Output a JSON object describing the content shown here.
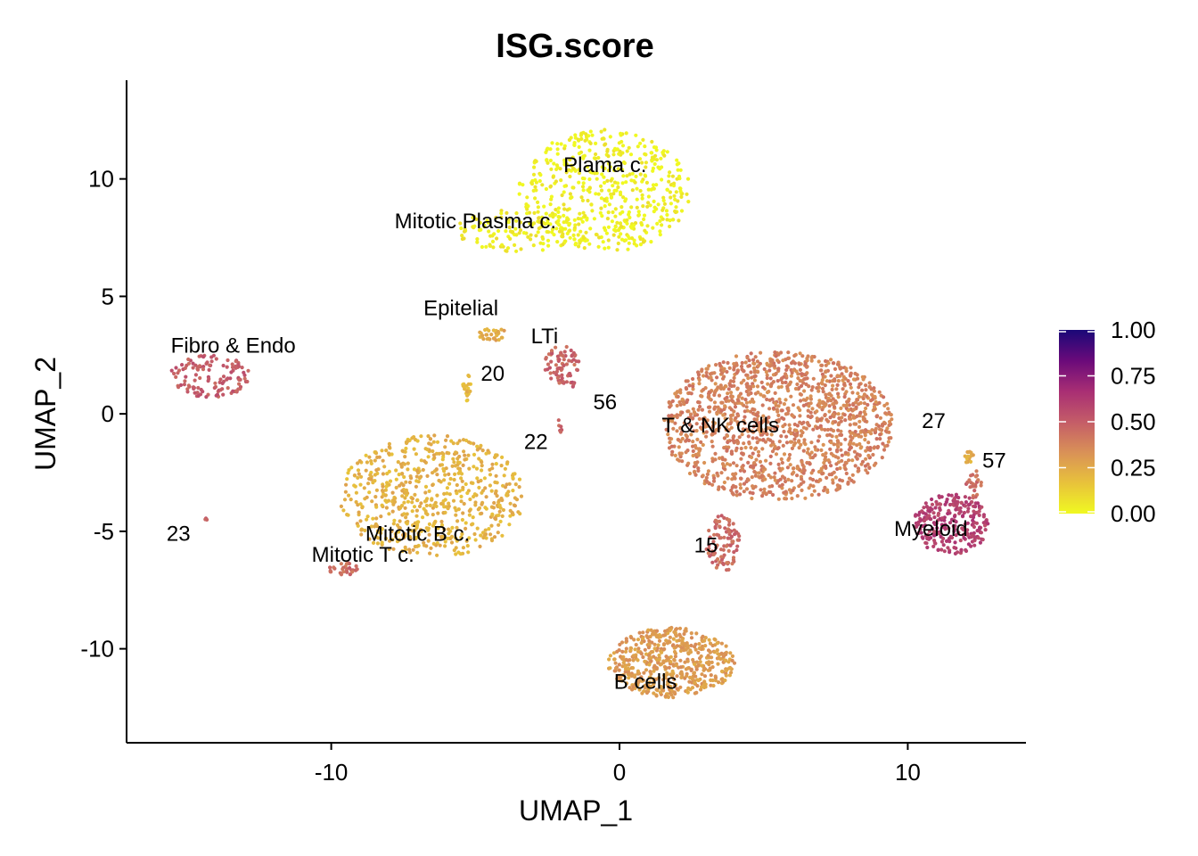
{
  "chart_data": {
    "type": "scatter",
    "title": "ISG.score",
    "xlabel": "UMAP_1",
    "ylabel": "UMAP_2",
    "xlim": [
      -17.1,
      14.1
    ],
    "ylim": [
      -14.0,
      14.2
    ],
    "x_ticks": [
      -10,
      0,
      10
    ],
    "x_tick_labels": [
      "-10",
      "0",
      "10"
    ],
    "y_ticks": [
      10,
      5,
      0,
      -5,
      -10
    ],
    "y_tick_labels": [
      "10",
      "5",
      "0",
      "-5",
      "-10"
    ],
    "grid": false,
    "color_scale": {
      "name": "plasma (reversed)",
      "range": [
        0,
        1
      ],
      "ticks": [
        "1.00",
        "0.75",
        "0.50",
        "0.25",
        "0.00"
      ],
      "tick_values": [
        1.0,
        0.75,
        0.5,
        0.25,
        0.0
      ],
      "stops": [
        "#f0f921",
        "#e8c23b",
        "#d99157",
        "#c45c68",
        "#a82e74",
        "#6a0a7a",
        "#1a0878"
      ],
      "legend_position": "right"
    },
    "clusters": [
      {
        "label": "Plama c.",
        "x": -0.5,
        "y": 9.5,
        "rx": 3.0,
        "ry": 2.6,
        "score": 0.02,
        "n": 520,
        "label_x": -0.5,
        "label_y": 10.3
      },
      {
        "label": "Mitotic Plasma c.",
        "x": -3.5,
        "y": 7.8,
        "rx": 2.2,
        "ry": 0.9,
        "score": 0.04,
        "n": 120,
        "label_x": -5.0,
        "label_y": 7.9
      },
      {
        "label": "Epitelial",
        "x": -4.4,
        "y": 3.4,
        "rx": 0.5,
        "ry": 0.3,
        "score": 0.25,
        "n": 30,
        "label_x": -5.5,
        "label_y": 4.2
      },
      {
        "label": "LTi",
        "x": -2.0,
        "y": 2.1,
        "rx": 0.6,
        "ry": 0.8,
        "score": 0.47,
        "n": 70,
        "label_x": -2.6,
        "label_y": 3.0
      },
      {
        "label": "20",
        "x": -5.3,
        "y": 1.1,
        "rx": 0.15,
        "ry": 0.6,
        "score": 0.2,
        "n": 20,
        "label_x": -4.4,
        "label_y": 1.4
      },
      {
        "label": "56",
        "x": -1.6,
        "y": 1.3,
        "rx": 0.15,
        "ry": 0.15,
        "score": 0.5,
        "n": 5,
        "label_x": -0.5,
        "label_y": 0.2
      },
      {
        "label": "22",
        "x": -2.0,
        "y": -0.5,
        "rx": 0.2,
        "ry": 0.3,
        "score": 0.45,
        "n": 6,
        "label_x": -2.9,
        "label_y": -1.5
      },
      {
        "label": "Fibro & Endo",
        "x": -14.2,
        "y": 1.6,
        "rx": 1.4,
        "ry": 0.9,
        "score": 0.5,
        "n": 120,
        "label_x": -13.4,
        "label_y": 2.6
      },
      {
        "label": "23",
        "x": -14.3,
        "y": -4.5,
        "rx": 0.1,
        "ry": 0.1,
        "score": 0.5,
        "n": 3,
        "label_x": -15.3,
        "label_y": -5.4
      },
      {
        "label": "Mitotic B c.",
        "x": -6.5,
        "y": -3.5,
        "rx": 3.2,
        "ry": 2.6,
        "score": 0.22,
        "n": 620,
        "label_x": -7.0,
        "label_y": -5.4
      },
      {
        "label": "Mitotic T c.",
        "x": -9.5,
        "y": -6.6,
        "rx": 0.6,
        "ry": 0.3,
        "score": 0.45,
        "n": 30,
        "label_x": -8.9,
        "label_y": -6.3
      },
      {
        "label": "T & NK cells",
        "x": 5.5,
        "y": -0.5,
        "rx": 4.0,
        "ry": 3.2,
        "score": 0.38,
        "n": 1400,
        "label_x": 3.5,
        "label_y": -0.8
      },
      {
        "label": "15",
        "x": 3.6,
        "y": -5.5,
        "rx": 0.6,
        "ry": 1.2,
        "score": 0.45,
        "n": 90,
        "label_x": 3.0,
        "label_y": -5.9
      },
      {
        "label": "27",
        "x": 12.1,
        "y": -1.8,
        "rx": 0.2,
        "ry": 0.3,
        "score": 0.25,
        "n": 15,
        "label_x": 10.9,
        "label_y": -0.6
      },
      {
        "label": "57",
        "x": 12.3,
        "y": -3.0,
        "rx": 0.3,
        "ry": 0.6,
        "score": 0.45,
        "n": 25,
        "label_x": 13.0,
        "label_y": -2.3
      },
      {
        "label": "Myeloid",
        "x": 11.5,
        "y": -4.7,
        "rx": 1.3,
        "ry": 1.3,
        "score": 0.6,
        "n": 260,
        "label_x": 10.8,
        "label_y": -5.2
      },
      {
        "label": "B cells",
        "x": 1.8,
        "y": -10.6,
        "rx": 2.2,
        "ry": 1.5,
        "score": 0.3,
        "n": 520,
        "label_x": 0.9,
        "label_y": -11.7
      }
    ]
  }
}
